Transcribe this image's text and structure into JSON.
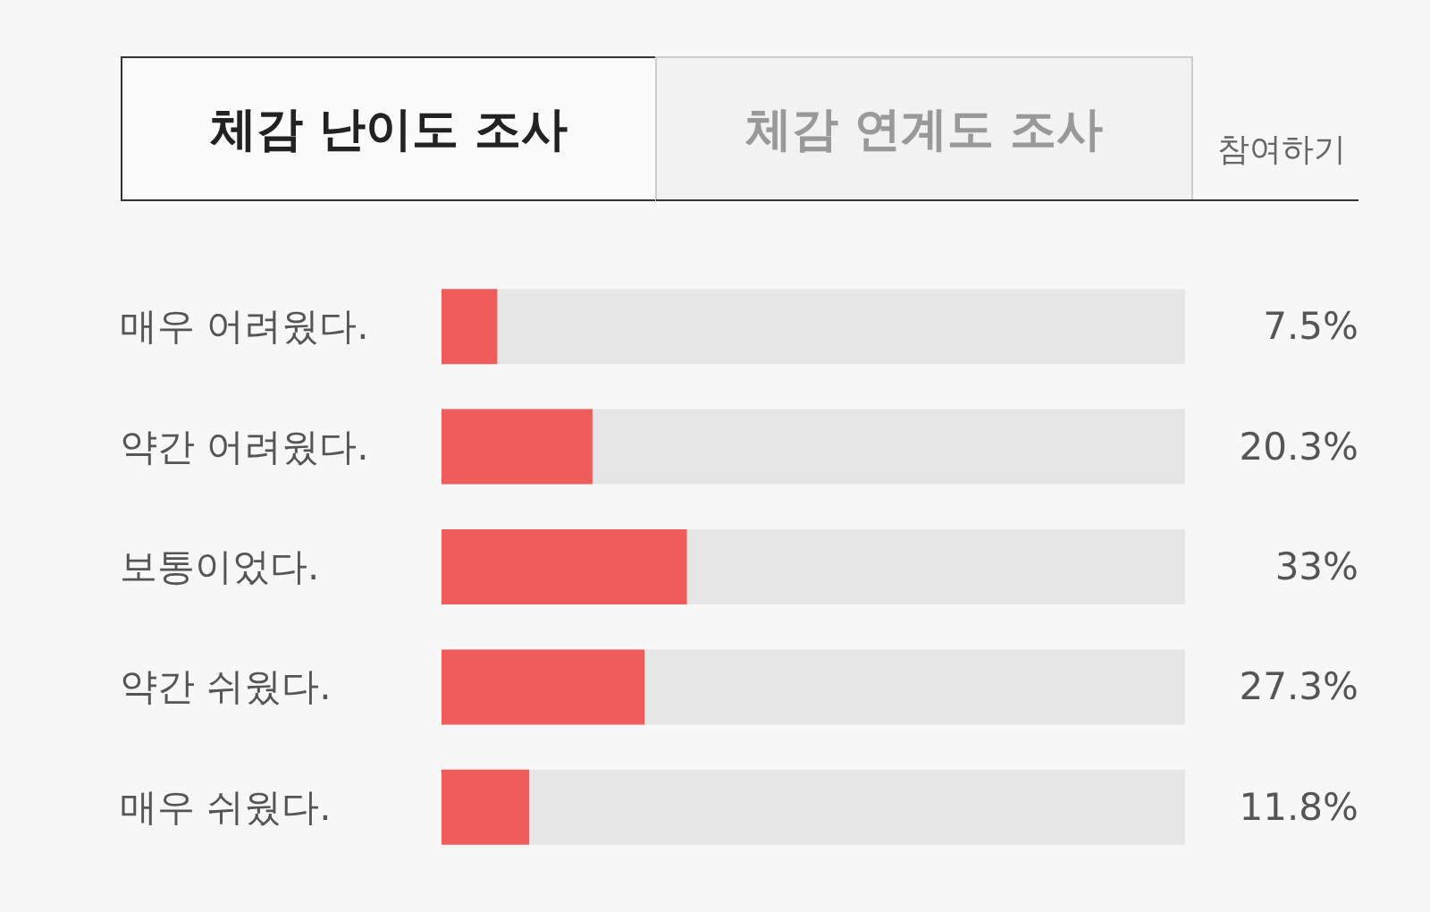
{
  "chart_data": {
    "type": "bar",
    "orientation": "horizontal",
    "title": "체감 난이도 조사",
    "annotations": [
      "체감 연계도 조사",
      "참여하기"
    ],
    "categories": [
      "매우 어려웠다.",
      "약간 어려웠다.",
      "보통이었다.",
      "약간 쉬웠다.",
      "매우 쉬웠다."
    ],
    "values": [
      7.5,
      20.3,
      33,
      27.3,
      11.8
    ],
    "color": "#ee5c5c",
    "value_labels": [
      "7.5%",
      "20.3%",
      "33%",
      "27.3%",
      "11.8%"
    ],
    "xlim": [
      0,
      100
    ],
    "tick_labels": "y",
    "grid": false
  }
}
